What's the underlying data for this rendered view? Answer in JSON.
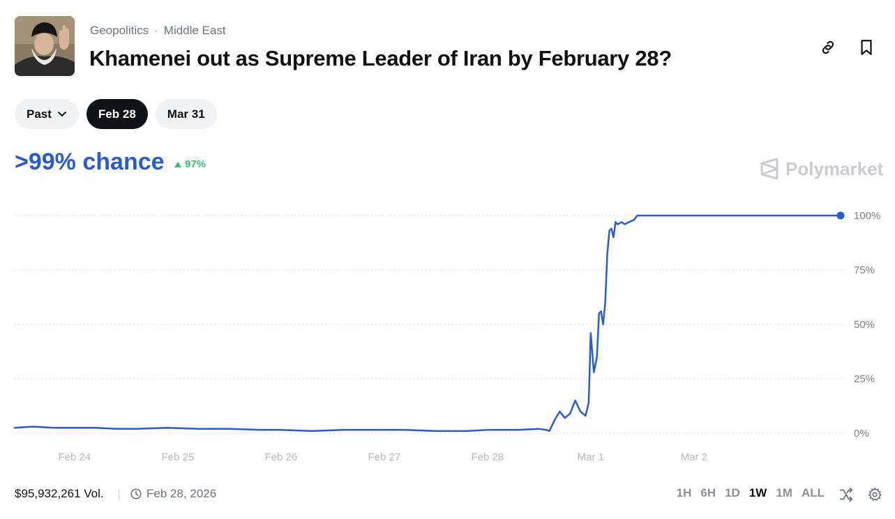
{
  "market": {
    "category": "Geopolitics",
    "subcategory": "Middle East",
    "separator": "·",
    "title": "Khamenei out as Supreme Leader of Iran by February 28?"
  },
  "header_icons": [
    "link-icon",
    "bookmark-icon"
  ],
  "tabs": [
    {
      "label": "Past",
      "has_dropdown": true,
      "active": false
    },
    {
      "label": "Feb 28",
      "active": true
    },
    {
      "label": "Mar 31",
      "active": false
    }
  ],
  "probability": {
    "text": ">99% chance",
    "change": "97%",
    "change_direction": "up",
    "color": "#2a5bd7",
    "change_color": "#33c26b"
  },
  "watermark": {
    "text": "Polymarket"
  },
  "footer": {
    "volume": "$95,932,261 Vol.",
    "date": "Feb 28, 2026",
    "ranges": [
      "1H",
      "6H",
      "1D",
      "1W",
      "1M",
      "ALL"
    ],
    "active_range": "1W"
  },
  "chart_data": {
    "type": "line",
    "y_unit": "%",
    "ylim": [
      0,
      100
    ],
    "y_ticks": [
      "0%",
      "25%",
      "50%",
      "75%",
      "100%"
    ],
    "x_ticks": [
      "Feb 24",
      "Feb 25",
      "Feb 26",
      "Feb 27",
      "Feb 28",
      "Mar 1",
      "Mar 2"
    ],
    "xlim_days": [
      23.42,
      31.42
    ],
    "grid": "dotted horizontal",
    "series": [
      {
        "color": "#2a5bd7",
        "x_day": [
          23.42,
          23.6,
          23.8,
          24.0,
          24.2,
          24.4,
          24.6,
          24.9,
          25.2,
          25.5,
          25.8,
          26.0,
          26.3,
          26.6,
          26.9,
          27.2,
          27.5,
          27.8,
          28.0,
          28.3,
          28.5,
          28.57,
          28.6,
          28.65,
          28.7,
          28.75,
          28.8,
          28.85,
          28.9,
          28.95,
          28.98,
          29.0,
          29.03,
          29.06,
          29.08,
          29.1,
          29.12,
          29.14,
          29.16,
          29.18,
          29.2,
          29.22,
          29.24,
          29.26,
          29.3,
          29.33,
          29.37,
          29.42,
          29.45,
          29.5,
          29.6,
          30.0,
          30.5,
          31.0,
          31.42
        ],
        "y": [
          2.5,
          3,
          2.5,
          2.5,
          2.5,
          2,
          2,
          2.5,
          2,
          2,
          1.5,
          1.5,
          1,
          1.5,
          1.5,
          1.5,
          1,
          1,
          1.5,
          1.5,
          2,
          1.5,
          1,
          6,
          10,
          7,
          9,
          15,
          10,
          8,
          14,
          46,
          28,
          35,
          55,
          56,
          50,
          60,
          82,
          93,
          94,
          90,
          97,
          96,
          97,
          96,
          97,
          98,
          100,
          100,
          100,
          100,
          100,
          100,
          100
        ]
      }
    ]
  }
}
